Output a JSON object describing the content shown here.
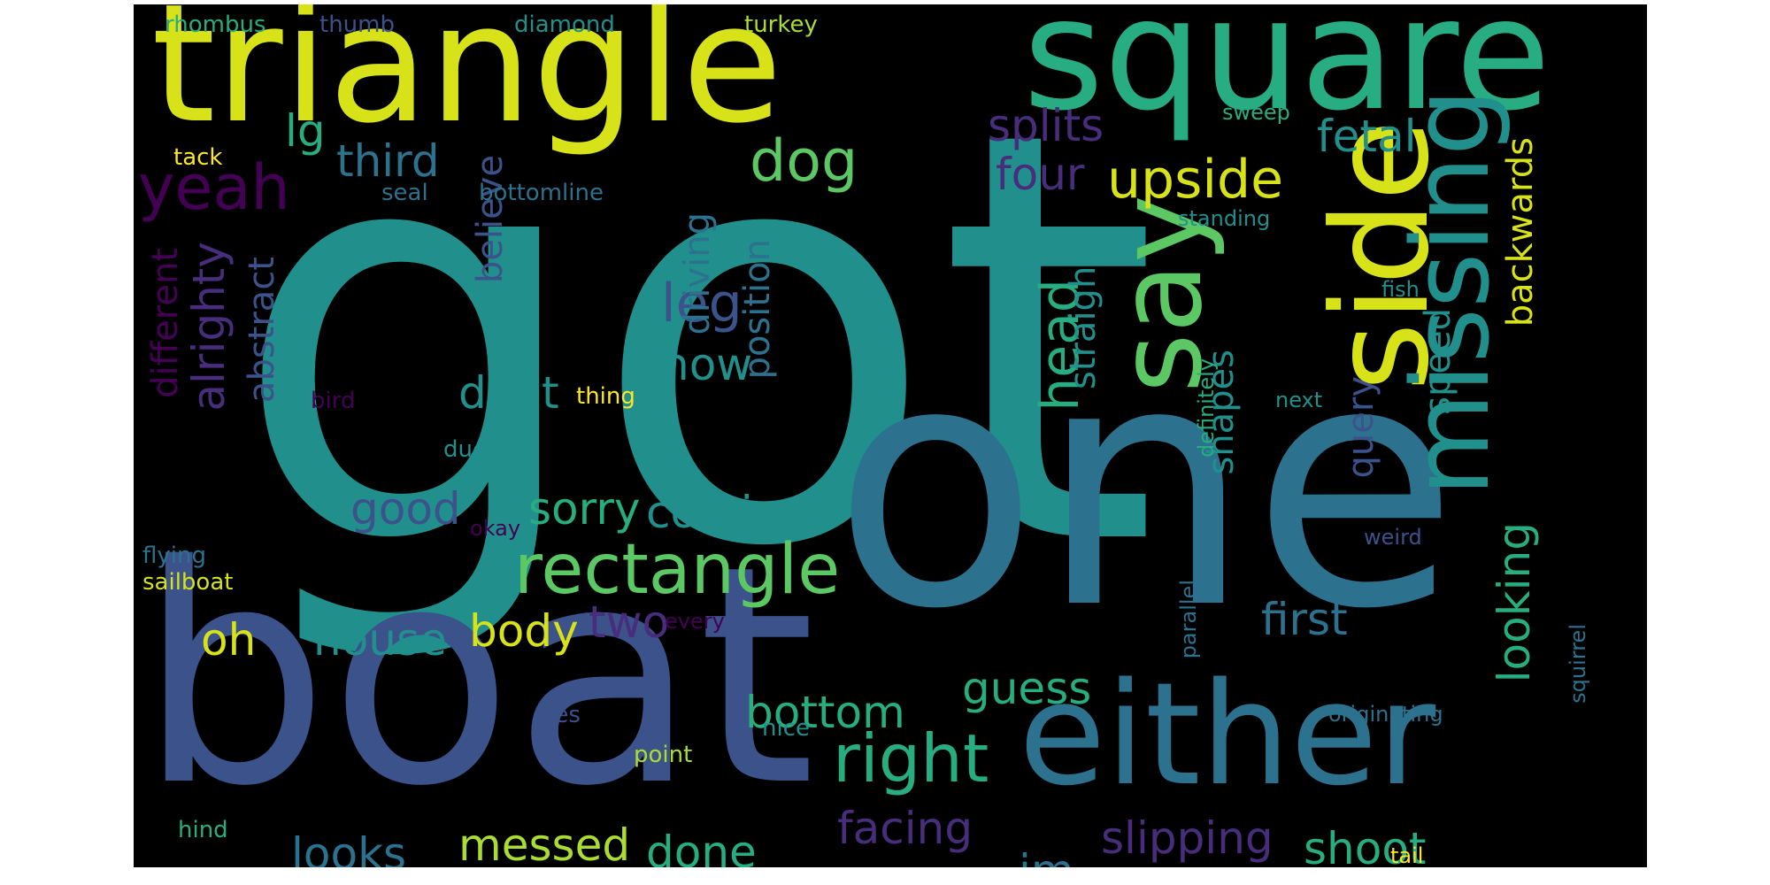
{
  "palette": {
    "background": "#000000",
    "page": "#ffffff",
    "colors": [
      "#440154",
      "#472d7b",
      "#3b528b",
      "#2c728e",
      "#21908d",
      "#27ad81",
      "#5cc863",
      "#aadc32",
      "#d8e219",
      "#fde725"
    ]
  },
  "words": [
    {
      "text": "got",
      "color": "#21908d",
      "orientation": "horizontal"
    },
    {
      "text": "one",
      "color": "#2c728e",
      "orientation": "horizontal"
    },
    {
      "text": "boat",
      "color": "#3b528b",
      "orientation": "horizontal"
    },
    {
      "text": "triangle",
      "color": "#d8e219",
      "orientation": "horizontal"
    },
    {
      "text": "square",
      "color": "#27ad81",
      "orientation": "horizontal"
    },
    {
      "text": "either",
      "color": "#2c728e",
      "orientation": "horizontal"
    },
    {
      "text": "side",
      "color": "#d8e219",
      "orientation": "vertical"
    },
    {
      "text": "missing",
      "color": "#21908d",
      "orientation": "vertical"
    },
    {
      "text": "say",
      "color": "#5cc863",
      "orientation": "vertical"
    },
    {
      "text": "rectangle",
      "color": "#5cc863",
      "orientation": "horizontal"
    },
    {
      "text": "right",
      "color": "#27ad81",
      "orientation": "horizontal"
    },
    {
      "text": "upside",
      "color": "#d8e219",
      "orientation": "horizontal"
    },
    {
      "text": "yeah",
      "color": "#440154",
      "orientation": "horizontal"
    },
    {
      "text": "dog",
      "color": "#5cc863",
      "orientation": "horizontal"
    },
    {
      "text": "leg",
      "color": "#3b528b",
      "orientation": "horizontal"
    },
    {
      "text": "head",
      "color": "#27ad81",
      "orientation": "vertical"
    },
    {
      "text": "looking",
      "color": "#27ad81",
      "orientation": "vertical"
    },
    {
      "text": "alrighty",
      "color": "#472d7b",
      "orientation": "vertical"
    },
    {
      "text": "third",
      "color": "#2c728e",
      "orientation": "horizontal"
    },
    {
      "text": "splits",
      "color": "#472d7b",
      "orientation": "horizontal"
    },
    {
      "text": "fetal",
      "color": "#21908d",
      "orientation": "horizontal"
    },
    {
      "text": "four",
      "color": "#472d7b",
      "orientation": "horizontal"
    },
    {
      "text": "lg",
      "color": "#27ad81",
      "orientation": "horizontal"
    },
    {
      "text": "now",
      "color": "#21908d",
      "orientation": "horizontal"
    },
    {
      "text": "dont",
      "color": "#21908d",
      "orientation": "horizontal"
    },
    {
      "text": "good",
      "color": "#3b528b",
      "orientation": "horizontal"
    },
    {
      "text": "sorry",
      "color": "#27ad81",
      "orientation": "horizontal"
    },
    {
      "text": "coming",
      "color": "#21908d",
      "orientation": "horizontal"
    },
    {
      "text": "house",
      "color": "#21908d",
      "orientation": "horizontal"
    },
    {
      "text": "body",
      "color": "#d8e219",
      "orientation": "horizontal"
    },
    {
      "text": "two",
      "color": "#472d7b",
      "orientation": "horizontal"
    },
    {
      "text": "oh",
      "color": "#d8e219",
      "orientation": "horizontal"
    },
    {
      "text": "guess",
      "color": "#27ad81",
      "orientation": "horizontal"
    },
    {
      "text": "first",
      "color": "#2c728e",
      "orientation": "horizontal"
    },
    {
      "text": "bottom",
      "color": "#27ad81",
      "orientation": "horizontal"
    },
    {
      "text": "looks",
      "color": "#2c728e",
      "orientation": "horizontal"
    },
    {
      "text": "messed",
      "color": "#aadc32",
      "orientation": "horizontal"
    },
    {
      "text": "done",
      "color": "#27ad81",
      "orientation": "horizontal"
    },
    {
      "text": "facing",
      "color": "#472d7b",
      "orientation": "horizontal"
    },
    {
      "text": "im",
      "color": "#2c728e",
      "orientation": "horizontal"
    },
    {
      "text": "slipping",
      "color": "#472d7b",
      "orientation": "horizontal"
    },
    {
      "text": "shoot",
      "color": "#27ad81",
      "orientation": "horizontal"
    },
    {
      "text": "different",
      "color": "#440154",
      "orientation": "vertical"
    },
    {
      "text": "abstract",
      "color": "#3b528b",
      "orientation": "vertical"
    },
    {
      "text": "believe",
      "color": "#3b528b",
      "orientation": "vertical"
    },
    {
      "text": "driving",
      "color": "#2c728e",
      "orientation": "vertical"
    },
    {
      "text": "position",
      "color": "#2c728e",
      "orientation": "vertical"
    },
    {
      "text": "straight",
      "color": "#21908d",
      "orientation": "vertical"
    },
    {
      "text": "shapes",
      "color": "#21908d",
      "orientation": "vertical"
    },
    {
      "text": "query",
      "color": "#3b528b",
      "orientation": "vertical"
    },
    {
      "text": "speed",
      "color": "#21908d",
      "orientation": "vertical"
    },
    {
      "text": "backwards",
      "color": "#d8e219",
      "orientation": "vertical"
    },
    {
      "text": "definitely",
      "color": "#27ad81",
      "orientation": "vertical"
    },
    {
      "text": "parallel",
      "color": "#2c728e",
      "orientation": "vertical"
    },
    {
      "text": "squirrel",
      "color": "#2c728e",
      "orientation": "vertical"
    },
    {
      "text": "rhombus",
      "color": "#27ad81",
      "orientation": "horizontal"
    },
    {
      "text": "thumb",
      "color": "#3b528b",
      "orientation": "horizontal"
    },
    {
      "text": "diamond",
      "color": "#21908d",
      "orientation": "horizontal"
    },
    {
      "text": "turkey",
      "color": "#aadc32",
      "orientation": "horizontal"
    },
    {
      "text": "sweep",
      "color": "#27ad81",
      "orientation": "horizontal"
    },
    {
      "text": "tack",
      "color": "#fde725",
      "orientation": "horizontal"
    },
    {
      "text": "seal",
      "color": "#2c728e",
      "orientation": "horizontal"
    },
    {
      "text": "bottomline",
      "color": "#2c728e",
      "orientation": "horizontal"
    },
    {
      "text": "standing",
      "color": "#21908d",
      "orientation": "horizontal"
    },
    {
      "text": "fish",
      "color": "#21908d",
      "orientation": "horizontal"
    },
    {
      "text": "bird",
      "color": "#440154",
      "orientation": "horizontal"
    },
    {
      "text": "thing",
      "color": "#fde725",
      "orientation": "horizontal"
    },
    {
      "text": "next",
      "color": "#21908d",
      "orientation": "horizontal"
    },
    {
      "text": "duck",
      "color": "#21908d",
      "orientation": "horizontal"
    },
    {
      "text": "okay",
      "color": "#440154",
      "orientation": "horizontal"
    },
    {
      "text": "weird",
      "color": "#3b528b",
      "orientation": "horizontal"
    },
    {
      "text": "flying",
      "color": "#2c728e",
      "orientation": "horizontal"
    },
    {
      "text": "sailboat",
      "color": "#d8e219",
      "orientation": "horizontal"
    },
    {
      "text": "every",
      "color": "#440154",
      "orientation": "horizontal"
    },
    {
      "text": "originating",
      "color": "#2c728e",
      "orientation": "horizontal"
    },
    {
      "text": "yes",
      "color": "#3b528b",
      "orientation": "horizontal"
    },
    {
      "text": "nice",
      "color": "#21908d",
      "orientation": "horizontal"
    },
    {
      "text": "point",
      "color": "#aadc32",
      "orientation": "horizontal"
    },
    {
      "text": "hind",
      "color": "#27ad81",
      "orientation": "horizontal"
    },
    {
      "text": "tail",
      "color": "#fde725",
      "orientation": "horizontal"
    }
  ]
}
